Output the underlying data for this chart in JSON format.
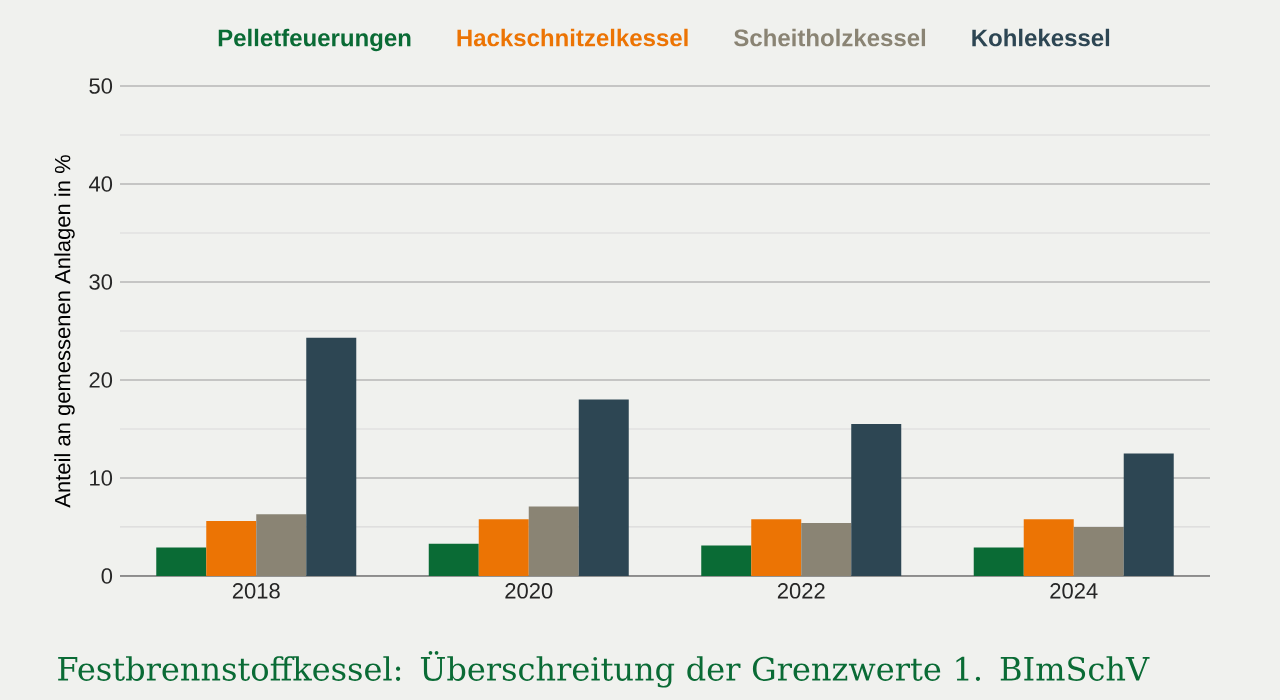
{
  "chart_data": {
    "type": "bar",
    "title": "Festbrennstoffkessel: Überschreitung der Grenzwerte 1. BImSchV",
    "ylabel": "Anteil an gemessenen Anlagen in %",
    "categories": [
      "2018",
      "2020",
      "2022",
      "2024"
    ],
    "series": [
      {
        "name": "Pelletfeuerungen",
        "color": "#0a6b35",
        "values": [
          2.9,
          3.3,
          3.1,
          2.9
        ]
      },
      {
        "name": "Hackschnitzelkessel",
        "color": "#ec7404",
        "values": [
          5.6,
          5.8,
          5.8,
          5.8
        ]
      },
      {
        "name": "Scheitholzkessel",
        "color": "#8a8474",
        "values": [
          6.3,
          7.1,
          5.4,
          5.0
        ]
      },
      {
        "name": "Kohlekessel",
        "color": "#2d4653",
        "values": [
          24.3,
          18.0,
          15.5,
          12.5
        ]
      }
    ],
    "ylim": [
      0,
      50
    ],
    "yticks": [
      0,
      10,
      20,
      30,
      40,
      50
    ],
    "grid": "y",
    "legend": "top"
  }
}
